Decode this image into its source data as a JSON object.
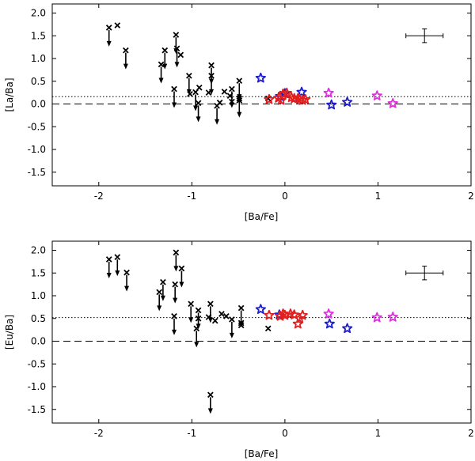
{
  "chart_data": [
    {
      "type": "scatter",
      "panel": "top",
      "xlabel": "[Ba/Fe]",
      "ylabel": "[La/Ba]",
      "xlim": [
        -2.5,
        2.0
      ],
      "ylim": [
        -1.8,
        2.2
      ],
      "xticks": [
        "-2",
        "-1",
        "0",
        "1",
        "2"
      ],
      "xtick_values": [
        -2,
        -1,
        0,
        1,
        2
      ],
      "yticks": [
        "2.0",
        "1.5",
        "1.0",
        "0.5",
        "0.0",
        "-0.5",
        "-1.0",
        "-1.5"
      ],
      "ytick_values": [
        2.0,
        1.5,
        1.0,
        0.5,
        0.0,
        -0.5,
        -1.0,
        -1.5
      ],
      "dashed_line_y": 0.0,
      "dotted_line_y": 0.16,
      "error_bar": {
        "x": 1.5,
        "y": 1.5,
        "xerr": 0.2,
        "yerr": 0.15
      },
      "series": [
        {
          "name": "upper limits",
          "marker": "x-arrow",
          "color": "#000000",
          "points": [
            [
              -1.89,
              1.68
            ],
            [
              -1.71,
              1.18
            ],
            [
              -1.33,
              0.87
            ],
            [
              -1.29,
              1.18
            ],
            [
              -1.19,
              0.33
            ],
            [
              -1.17,
              1.52
            ],
            [
              -1.16,
              1.22
            ],
            [
              -1.03,
              0.62
            ],
            [
              -0.93,
              0.02
            ],
            [
              -0.96,
              0.26
            ],
            [
              -0.79,
              0.62
            ],
            [
              -0.79,
              0.85
            ],
            [
              -0.73,
              -0.04
            ],
            [
              -0.57,
              0.33
            ],
            [
              -0.49,
              0.51
            ],
            [
              -0.49,
              0.12
            ]
          ]
        },
        {
          "name": "detections",
          "marker": "x",
          "color": "#000000",
          "points": [
            [
              -1.8,
              1.73
            ],
            [
              -1.12,
              1.08
            ],
            [
              -1.02,
              0.22
            ],
            [
              -0.92,
              0.36
            ],
            [
              -0.82,
              0.25
            ],
            [
              -0.7,
              0.03
            ],
            [
              -0.65,
              0.27
            ],
            [
              -0.59,
              0.18
            ],
            [
              -0.57,
              0.05
            ],
            [
              -0.49,
              0.08
            ],
            [
              -0.18,
              0.12
            ]
          ]
        },
        {
          "name": "blue stars",
          "marker": "star",
          "color": "#1f1fd0",
          "points": [
            [
              -0.26,
              0.57
            ],
            [
              -0.05,
              0.17
            ],
            [
              0.0,
              0.23
            ],
            [
              0.18,
              0.26
            ],
            [
              0.5,
              -0.02
            ],
            [
              0.67,
              0.04
            ]
          ]
        },
        {
          "name": "red stars",
          "marker": "star",
          "color": "#e02020",
          "points": [
            [
              -0.17,
              0.1
            ],
            [
              -0.07,
              0.13
            ],
            [
              -0.04,
              0.08
            ],
            [
              -0.02,
              0.22
            ],
            [
              0.02,
              0.24
            ],
            [
              0.07,
              0.14
            ],
            [
              0.1,
              0.12
            ],
            [
              0.14,
              0.12
            ],
            [
              0.16,
              0.1
            ],
            [
              0.19,
              0.08
            ],
            [
              0.22,
              0.1
            ]
          ]
        },
        {
          "name": "magenta stars",
          "marker": "star",
          "color": "#e030e0",
          "points": [
            [
              0.47,
              0.24
            ],
            [
              0.99,
              0.18
            ],
            [
              1.16,
              0.01
            ]
          ]
        }
      ]
    },
    {
      "type": "scatter",
      "panel": "bottom",
      "xlabel": "[Ba/Fe]",
      "ylabel": "[Eu/Ba]",
      "xlim": [
        -2.5,
        2.0
      ],
      "ylim": [
        -1.8,
        2.2
      ],
      "xticks": [
        "-2",
        "-1",
        "0",
        "1",
        "2"
      ],
      "xtick_values": [
        -2,
        -1,
        0,
        1,
        2
      ],
      "yticks": [
        "2.0",
        "1.5",
        "1.0",
        "0.5",
        "0.0",
        "-0.5",
        "-1.0",
        "-1.5"
      ],
      "ytick_values": [
        2.0,
        1.5,
        1.0,
        0.5,
        0.0,
        -0.5,
        -1.0,
        -1.5
      ],
      "dashed_line_y": 0.0,
      "dotted_line_y": 0.52,
      "error_bar": {
        "x": 1.5,
        "y": 1.5,
        "xerr": 0.2,
        "yerr": 0.15
      },
      "series": [
        {
          "name": "upper limits",
          "marker": "x-arrow",
          "color": "#000000",
          "points": [
            [
              -1.89,
              1.8
            ],
            [
              -1.8,
              1.85
            ],
            [
              -1.7,
              1.51
            ],
            [
              -1.35,
              1.08
            ],
            [
              -1.31,
              1.3
            ],
            [
              -1.19,
              0.55
            ],
            [
              -1.18,
              1.25
            ],
            [
              -1.17,
              1.95
            ],
            [
              -1.11,
              1.6
            ],
            [
              -1.01,
              0.82
            ],
            [
              -0.93,
              0.68
            ],
            [
              -0.95,
              0.28
            ],
            [
              -0.8,
              0.82
            ],
            [
              -0.8,
              -1.18
            ],
            [
              -0.57,
              0.48
            ],
            [
              -0.47,
              0.73
            ]
          ]
        },
        {
          "name": "detections",
          "marker": "x",
          "color": "#000000",
          "points": [
            [
              -0.93,
              0.5
            ],
            [
              -0.82,
              0.53
            ],
            [
              -0.75,
              0.45
            ],
            [
              -0.68,
              0.6
            ],
            [
              -0.63,
              0.55
            ],
            [
              -0.47,
              0.4
            ],
            [
              -0.47,
              0.35
            ],
            [
              -0.18,
              0.28
            ]
          ]
        },
        {
          "name": "blue stars",
          "marker": "star",
          "color": "#1f1fd0",
          "points": [
            [
              -0.26,
              0.7
            ],
            [
              -0.06,
              0.58
            ],
            [
              0.48,
              0.38
            ],
            [
              0.67,
              0.28
            ]
          ]
        },
        {
          "name": "red stars",
          "marker": "star",
          "color": "#e02020",
          "points": [
            [
              -0.17,
              0.57
            ],
            [
              -0.05,
              0.55
            ],
            [
              -0.02,
              0.6
            ],
            [
              0.0,
              0.57
            ],
            [
              0.06,
              0.6
            ],
            [
              0.1,
              0.58
            ],
            [
              0.14,
              0.38
            ],
            [
              0.16,
              0.5
            ],
            [
              0.19,
              0.57
            ]
          ]
        },
        {
          "name": "magenta stars",
          "marker": "star",
          "color": "#e030e0",
          "points": [
            [
              0.47,
              0.6
            ],
            [
              0.99,
              0.52
            ],
            [
              1.16,
              0.53
            ]
          ]
        }
      ]
    }
  ]
}
